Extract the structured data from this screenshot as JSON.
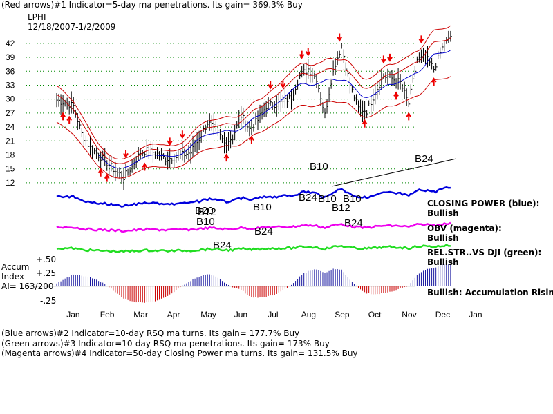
{
  "header": {
    "line1": "(Red arrows)#1 Indicator=5-day ma penetrations. Its gain= 369.3% Buy",
    "ticker": "LPHI",
    "dates": "12/18/2007-1/2/2009"
  },
  "footer": {
    "line1": "(Blue arrows)#2 Indicator=10-day RSQ ma turns. Its gain= 177.7% Buy",
    "line2": "(Green arrows)#3 Indicator=10-day RSQ ma penetrations. Its gain= 173% Buy",
    "line3": "(Magenta arrows)#4 Indicator=50-day Closing Power ma turns. Its gain= 131.5% Buy"
  },
  "side_labels": {
    "cp_title": "CLOSING POWER (blue):",
    "cp_value": "Bullish",
    "obv_title": "OBV (magenta):",
    "obv_value": "Bullish",
    "rs_title": "REL.STR..VS DJI (green):",
    "rs_value": "Bullish",
    "accum_status": "Bullish: Accumulation Rising."
  },
  "accum_labels": {
    "title1": "Accum",
    "title2": "Index",
    "ai": "AI= 163/200",
    "p50": "+.50",
    "p25": "+.25",
    "m25": "-.25"
  },
  "colors": {
    "price": "#000000",
    "bands": "#cc0000",
    "ma": "#0000cc",
    "closing_power": "#0000dd",
    "obv": "#ee00ee",
    "rel_strength": "#22dd22",
    "accum_pos": "#1a1aa0",
    "accum_neg": "#cc0000",
    "arrows": "#ee0000",
    "grid": "#008800"
  },
  "chart_data": {
    "type": "line",
    "title": "LPHI",
    "subtitle": "12/18/2007-1/2/2009",
    "months": [
      "Jan",
      "Feb",
      "Mar",
      "Apr",
      "May",
      "Jun",
      "Jul",
      "Aug",
      "Sep",
      "Oct",
      "Nov",
      "Dec",
      "Jan"
    ],
    "y_ticks": [
      12,
      15,
      18,
      21,
      24,
      27,
      30,
      33,
      36,
      39,
      42
    ],
    "ylim": [
      10.5,
      44.5
    ],
    "grid": true,
    "price_series": {
      "name": "LPHI",
      "x": [
        0,
        0.25,
        0.5,
        0.75,
        1,
        1.25,
        1.5,
        1.75,
        2,
        2.25,
        2.5,
        2.75,
        3,
        3.25,
        3.5,
        3.75,
        4,
        4.25,
        4.5,
        4.75,
        5,
        5.25,
        5.5,
        5.75,
        6,
        6.25,
        6.5,
        6.75,
        7,
        7.25,
        7.5,
        7.75,
        8,
        8.25,
        8.5,
        8.75,
        9,
        9.25,
        9.5,
        9.75,
        10,
        10.25,
        10.5,
        10.75,
        11,
        11.25,
        11.5,
        11.75
      ],
      "close": [
        29.8,
        29.2,
        28.5,
        22.5,
        19.5,
        18,
        16.3,
        14.5,
        13.2,
        15.5,
        18.5,
        19,
        18.2,
        17.2,
        17.4,
        18,
        18.5,
        21.5,
        25,
        23.5,
        20.5,
        21.8,
        26.5,
        23.5,
        25.5,
        28.5,
        29,
        29.3,
        30.5,
        35,
        36.5,
        34.5,
        26.5,
        36.5,
        41.5,
        33,
        28,
        27.5,
        31.5,
        35,
        34.5,
        33.5,
        29,
        38.5,
        39,
        36.5,
        41,
        43.5
      ]
    },
    "annotations": [
      "B24",
      "B10",
      "B24",
      "B10",
      "B12",
      "B10",
      "B20",
      "B10",
      "B12",
      "B10",
      "B24",
      "B24",
      "B24"
    ],
    "accum_index": {
      "ylim": [
        -0.35,
        0.6
      ],
      "ticks": [
        0.5,
        0.25,
        -0.25
      ]
    }
  }
}
